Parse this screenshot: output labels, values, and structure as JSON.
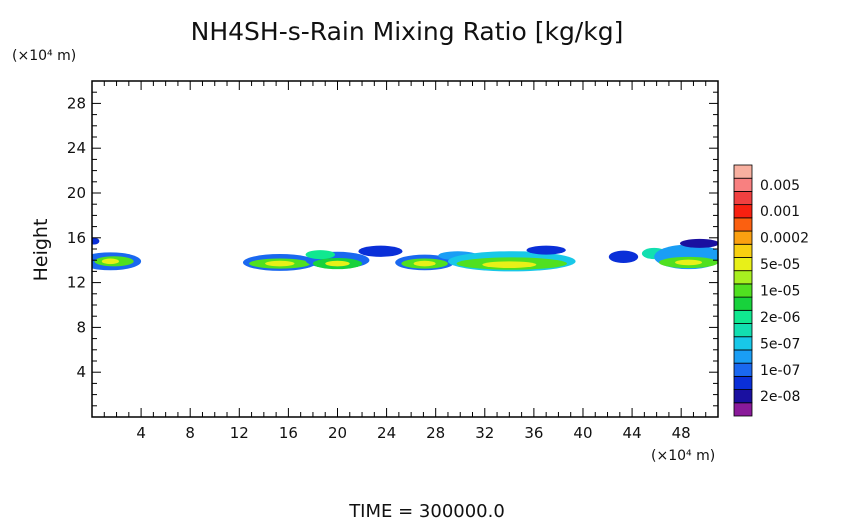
{
  "chart_data": {
    "type": "heatmap",
    "title": "NH4SH-s-Rain Mixing Ratio [kg/kg]",
    "ylabel": "Height",
    "x_unit_label": "(×10⁴ m)",
    "y_unit_label": "(×10⁴ m)",
    "footer": "TIME = 300000.0",
    "xlim": [
      0,
      51
    ],
    "ylim": [
      0,
      30
    ],
    "x_ticks": [
      4,
      8,
      12,
      16,
      20,
      24,
      28,
      32,
      36,
      40,
      44,
      48
    ],
    "y_ticks": [
      4,
      8,
      12,
      16,
      20,
      24,
      28
    ],
    "legend": [
      {
        "label": "",
        "color": "#8a1a9a"
      },
      {
        "label": "2e-08",
        "color": "#1a10a0"
      },
      {
        "label": "",
        "color": "#0a2fd8"
      },
      {
        "label": "1e-07",
        "color": "#1a68f0"
      },
      {
        "label": "",
        "color": "#1a9ef5"
      },
      {
        "label": "5e-07",
        "color": "#18c8e8"
      },
      {
        "label": "",
        "color": "#12dfb0"
      },
      {
        "label": "2e-06",
        "color": "#10e890"
      },
      {
        "label": "",
        "color": "#18d23c"
      },
      {
        "label": "1e-05",
        "color": "#50e020"
      },
      {
        "label": "",
        "color": "#a8f020"
      },
      {
        "label": "5e-05",
        "color": "#e8f018"
      },
      {
        "label": "",
        "color": "#f8d010"
      },
      {
        "label": "0.0002",
        "color": "#fba010"
      },
      {
        "label": "",
        "color": "#fb6010"
      },
      {
        "label": "0.001",
        "color": "#f82010"
      },
      {
        "label": "",
        "color": "#f04040"
      },
      {
        "label": "0.005",
        "color": "#f88080"
      },
      {
        "label": "",
        "color": "#f8b0a0"
      }
    ],
    "features": [
      {
        "x": 1.5,
        "y": 13.9,
        "rx": 2.5,
        "ry": 0.8,
        "level": 3
      },
      {
        "x": 1.8,
        "y": 13.9,
        "rx": 1.6,
        "ry": 0.45,
        "level": 9
      },
      {
        "x": 1.5,
        "y": 13.9,
        "rx": 0.7,
        "ry": 0.25,
        "level": 11
      },
      {
        "x": 0.2,
        "y": 15.7,
        "rx": 0.4,
        "ry": 0.3,
        "level": 2
      },
      {
        "x": 15.3,
        "y": 13.8,
        "rx": 3.0,
        "ry": 0.75,
        "level": 3
      },
      {
        "x": 15.3,
        "y": 13.7,
        "rx": 2.5,
        "ry": 0.45,
        "level": 9
      },
      {
        "x": 15.3,
        "y": 13.7,
        "rx": 1.2,
        "ry": 0.25,
        "level": 11
      },
      {
        "x": 20.0,
        "y": 14.0,
        "rx": 2.6,
        "ry": 0.75,
        "level": 3
      },
      {
        "x": 20.0,
        "y": 13.7,
        "rx": 2.0,
        "ry": 0.5,
        "level": 8
      },
      {
        "x": 20.0,
        "y": 13.7,
        "rx": 1.0,
        "ry": 0.25,
        "level": 11
      },
      {
        "x": 18.6,
        "y": 14.5,
        "rx": 1.2,
        "ry": 0.4,
        "level": 7
      },
      {
        "x": 23.5,
        "y": 14.8,
        "rx": 1.8,
        "ry": 0.5,
        "level": 2
      },
      {
        "x": 27.1,
        "y": 13.8,
        "rx": 2.4,
        "ry": 0.7,
        "level": 3
      },
      {
        "x": 27.1,
        "y": 13.7,
        "rx": 1.9,
        "ry": 0.45,
        "level": 9
      },
      {
        "x": 27.1,
        "y": 13.7,
        "rx": 0.9,
        "ry": 0.25,
        "level": 11
      },
      {
        "x": 29.8,
        "y": 14.4,
        "rx": 1.6,
        "ry": 0.4,
        "level": 4
      },
      {
        "x": 34.2,
        "y": 13.9,
        "rx": 5.2,
        "ry": 0.9,
        "level": 5
      },
      {
        "x": 34.2,
        "y": 13.7,
        "rx": 4.5,
        "ry": 0.55,
        "level": 9
      },
      {
        "x": 34.0,
        "y": 13.6,
        "rx": 2.2,
        "ry": 0.3,
        "level": 11
      },
      {
        "x": 37.0,
        "y": 14.9,
        "rx": 1.6,
        "ry": 0.4,
        "level": 2
      },
      {
        "x": 43.3,
        "y": 14.3,
        "rx": 1.2,
        "ry": 0.55,
        "level": 2
      },
      {
        "x": 45.8,
        "y": 14.6,
        "rx": 1.0,
        "ry": 0.5,
        "level": 6
      },
      {
        "x": 48.6,
        "y": 14.3,
        "rx": 2.8,
        "ry": 1.1,
        "level": 4
      },
      {
        "x": 48.6,
        "y": 13.8,
        "rx": 2.4,
        "ry": 0.5,
        "level": 9
      },
      {
        "x": 48.6,
        "y": 13.8,
        "rx": 1.1,
        "ry": 0.25,
        "level": 11
      },
      {
        "x": 49.5,
        "y": 15.5,
        "rx": 1.6,
        "ry": 0.4,
        "level": 1
      }
    ]
  }
}
